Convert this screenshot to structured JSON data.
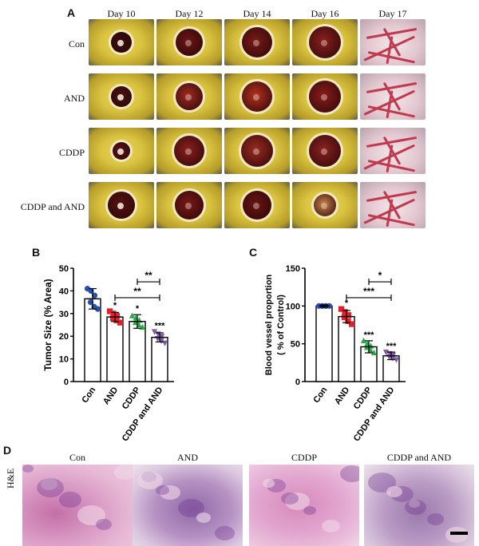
{
  "panels": {
    "a": "A",
    "b": "B",
    "c": "C",
    "d": "D"
  },
  "panel_a": {
    "days": [
      "Day 10",
      "Day 12",
      "Day 14",
      "Day 16",
      "Day 17"
    ],
    "groups": [
      "Con",
      "AND",
      "CDDP",
      "CDDP and AND"
    ]
  },
  "panel_d": {
    "stain_label": "H&E",
    "groups": [
      "Con",
      "AND",
      "CDDP",
      "CDDP and AND"
    ]
  },
  "colors": {
    "con": "#2b50b0",
    "and": "#e0202a",
    "cddp": "#2aa845",
    "combo": "#7b5aa8"
  },
  "chart_data": [
    {
      "type": "bar",
      "panel": "B",
      "categories": [
        "Con",
        "AND",
        "CDDP",
        "CDDP and AND"
      ],
      "values": [
        36.5,
        28.5,
        26.5,
        19.5
      ],
      "errors": [
        4.5,
        2.0,
        3.0,
        2.0
      ],
      "points": [
        [
          41,
          40,
          38,
          35,
          33,
          32
        ],
        [
          31,
          30,
          29,
          28,
          27,
          26
        ],
        [
          29,
          28,
          27,
          26,
          25,
          24
        ],
        [
          22,
          21,
          20,
          19,
          18,
          17
        ]
      ],
      "point_markers": [
        "circle",
        "square",
        "triangle",
        "inverted-triangle"
      ],
      "ylabel": "Tumor Size (% Area)",
      "ylim": [
        0,
        50
      ],
      "yticks": [
        0,
        10,
        20,
        30,
        40,
        50
      ],
      "significance_marks": [
        "",
        "*",
        "*",
        "***"
      ],
      "brackets": [
        {
          "from": "CDDP",
          "to": "CDDP and AND",
          "label": "**"
        },
        {
          "from": "AND",
          "to": "CDDP and AND",
          "label": "**"
        }
      ]
    },
    {
      "type": "bar",
      "panel": "C",
      "categories": [
        "Con",
        "AND",
        "CDDP",
        "CDDP and AND"
      ],
      "values": [
        100,
        86,
        46,
        34
      ],
      "errors": [
        1.5,
        8,
        8,
        5
      ],
      "points": [
        [
          100,
          100,
          100,
          100,
          100,
          100
        ],
        [
          96,
          92,
          88,
          85,
          80,
          76
        ],
        [
          54,
          50,
          47,
          45,
          42,
          38
        ],
        [
          39,
          37,
          35,
          33,
          31,
          29
        ]
      ],
      "point_markers": [
        "circle",
        "square",
        "triangle",
        "inverted-triangle"
      ],
      "ylabel": "Blood vessel proportion",
      "ylabel2": "( % of Control)",
      "ylim": [
        0,
        150
      ],
      "yticks": [
        0,
        50,
        100,
        150
      ],
      "significance_marks": [
        "",
        "*",
        "***",
        "***"
      ],
      "brackets": [
        {
          "from": "CDDP",
          "to": "CDDP and AND",
          "label": "*"
        },
        {
          "from": "AND",
          "to": "CDDP and AND",
          "label": "***"
        }
      ]
    }
  ]
}
